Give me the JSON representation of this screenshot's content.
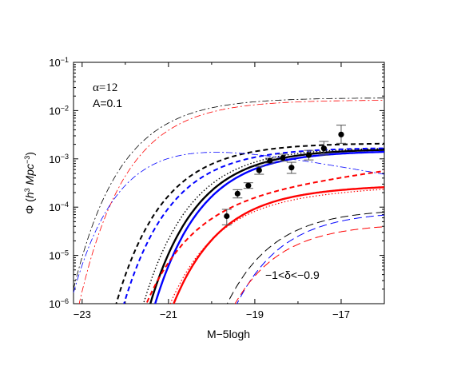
{
  "chart_data": {
    "type": "line",
    "xlabel": "M−5logh",
    "ylabel_parts": {
      "phi": "Φ (",
      "h": "h",
      "exp3": "3",
      "mpc": " Mpc",
      "expm3": "−3",
      "close": ")"
    },
    "xlim": [
      -23.2,
      -16.0
    ],
    "ylim_log10": [
      -6,
      -1
    ],
    "y_scale": "log",
    "x_ticks": [
      -23,
      -21,
      -19,
      -17
    ],
    "x_tick_labels": [
      "−23",
      "−21",
      "−19",
      "−17"
    ],
    "y_ticks_log10": [
      -6,
      -5,
      -4,
      -3,
      -2,
      -1
    ],
    "y_tick_labels": [
      {
        "base": "10",
        "exp": "−6"
      },
      {
        "base": "10",
        "exp": "−5"
      },
      {
        "base": "10",
        "exp": "−4"
      },
      {
        "base": "10",
        "exp": "−3"
      },
      {
        "base": "10",
        "exp": "−2"
      },
      {
        "base": "10",
        "exp": "−1"
      }
    ],
    "annotations": {
      "alpha": "α=12",
      "A": "A=0.1",
      "delta": "−1<δ<−0.9"
    },
    "points": [
      {
        "x": -19.65,
        "y": 6.5e-05,
        "err": [
          4.3e-05,
          9e-05
        ]
      },
      {
        "x": -19.4,
        "y": 0.00019,
        "err": [
          0.000155,
          0.00023
        ]
      },
      {
        "x": -19.15,
        "y": 0.00028,
        "err": [
          0.000245,
          0.00032
        ]
      },
      {
        "x": -18.9,
        "y": 0.00058,
        "err": [
          0.00048,
          0.0007
        ]
      },
      {
        "x": -18.65,
        "y": 0.00092,
        "err": [
          0.00082,
          0.00103
        ]
      },
      {
        "x": -18.35,
        "y": 0.00105,
        "err": [
          0.0009,
          0.00125
        ]
      },
      {
        "x": -18.15,
        "y": 0.00066,
        "err": [
          0.0005,
          0.00085
        ]
      },
      {
        "x": -17.75,
        "y": 0.0012,
        "err": [
          0.00095,
          0.0015
        ]
      },
      {
        "x": -17.4,
        "y": 0.00165,
        "err": [
          0.0012,
          0.0023
        ]
      },
      {
        "x": -17.0,
        "y": 0.0032,
        "err": [
          0.0021,
          0.005
        ]
      }
    ],
    "series": [
      {
        "color": "#000000",
        "style": "solid",
        "width": 2.4,
        "phi": 0.00175,
        "mstar": -19.25,
        "alpha": -1.0
      },
      {
        "color": "#0000ff",
        "style": "solid",
        "width": 2.4,
        "phi": 0.0016,
        "mstar": -19.15,
        "alpha": -1.0
      },
      {
        "color": "#ff0000",
        "style": "solid",
        "width": 2.4,
        "phi": 0.00026,
        "mstar": -19.05,
        "alpha": -1.05
      },
      {
        "color": "#000000",
        "style": "dotted",
        "width": 1.4,
        "phi": 0.00185,
        "mstar": -19.4,
        "alpha": -1.0
      },
      {
        "color": "#ff0000",
        "style": "dotted",
        "width": 1.2,
        "phi": 0.0002,
        "mstar": -19.2,
        "alpha": -1.1
      },
      {
        "color": "#000000",
        "style": "dashed",
        "width": 2.0,
        "phi": 0.0023,
        "mstar": -20.0,
        "alpha": -1.0
      },
      {
        "color": "#0000ff",
        "style": "dashed",
        "width": 2.0,
        "phi": 0.00185,
        "mstar": -19.85,
        "alpha": -1.0
      },
      {
        "color": "#ff0000",
        "style": "dashed",
        "width": 2.0,
        "phi": 0.00022,
        "mstar": -19.8,
        "alpha": -1.3
      },
      {
        "color": "#000000",
        "style": "longdash",
        "width": 1.0,
        "phi": 0.0001,
        "mstar": -18.0,
        "alpha": -1.0
      },
      {
        "color": "#0000ff",
        "style": "longdash",
        "width": 1.0,
        "phi": 9e-05,
        "mstar": -17.8,
        "alpha": -1.0
      },
      {
        "color": "#ff0000",
        "style": "longdash",
        "width": 1.0,
        "phi": 5e-05,
        "mstar": -18.0,
        "alpha": -1.0
      },
      {
        "color": "#000000",
        "style": "dashdot",
        "width": 0.8,
        "phi": 0.02,
        "mstar": -20.8,
        "alpha": -1.0
      },
      {
        "color": "#ff0000",
        "style": "dashdot",
        "width": 0.8,
        "phi": 0.018,
        "mstar": -20.6,
        "alpha": -1.0
      },
      {
        "color": "#0000ff",
        "style": "dashdot",
        "width": 0.8,
        "phi": 0.0032,
        "mstar": -20.9,
        "alpha": -0.6
      }
    ]
  }
}
